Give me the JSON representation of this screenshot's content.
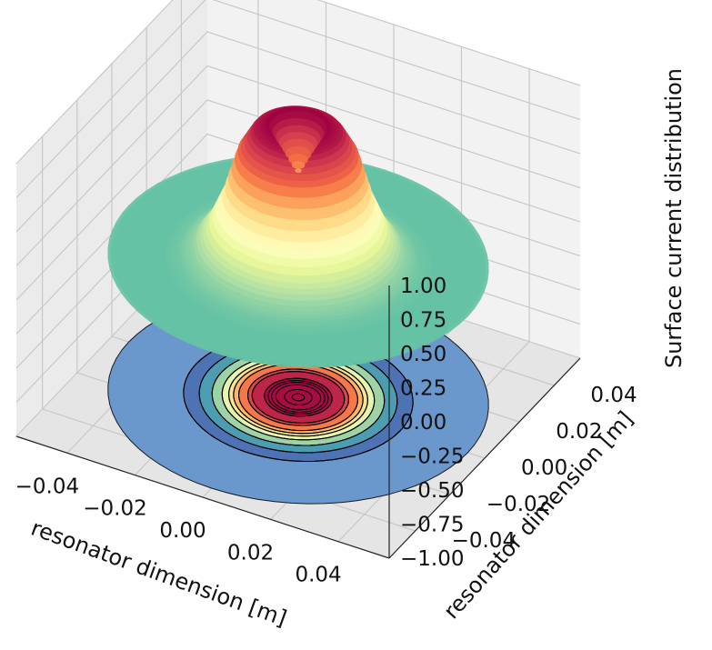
{
  "chart_data": {
    "type": "surface3d",
    "title": "",
    "xlabel": "resonator dimension [m]",
    "ylabel": "resonator dimension [m]",
    "zlabel": "Surface current distribution",
    "xlim": [
      -0.055,
      0.055
    ],
    "ylim": [
      -0.055,
      0.055
    ],
    "zlim": [
      -1.0,
      1.0
    ],
    "x_ticks": [
      -0.04,
      -0.02,
      0.0,
      0.02,
      0.04
    ],
    "x_tick_labels": [
      "−0.04",
      "−0.02",
      "0.00",
      "0.02",
      "0.04"
    ],
    "y_ticks": [
      -0.04,
      -0.02,
      0.0,
      0.02,
      0.04
    ],
    "y_tick_labels": [
      "−0.04",
      "−0.02",
      "0.00",
      "0.02",
      "0.04"
    ],
    "z_ticks": [
      -1.0,
      -0.75,
      -0.5,
      -0.25,
      0.0,
      0.25,
      0.5,
      0.75,
      1.0
    ],
    "z_tick_labels": [
      "−1.00",
      "−0.75",
      "−0.50",
      "−0.25",
      "0.00",
      "0.25",
      "0.50",
      "0.75",
      "1.00"
    ],
    "surface_profile": {
      "r": [
        0.0,
        0.004,
        0.008,
        0.012,
        0.016,
        0.02,
        0.024,
        0.028,
        0.032,
        0.036,
        0.04,
        0.045,
        0.05
      ],
      "z": [
        0.62,
        0.82,
        1.0,
        0.95,
        0.78,
        0.45,
        0.22,
        0.08,
        0.02,
        0.0,
        0.0,
        0.0,
        0.0
      ]
    },
    "contour_offset_z": -1.0,
    "contour_levels": [
      0.05,
      0.15,
      0.3,
      0.45,
      0.6,
      0.7,
      0.8,
      0.9,
      0.95,
      0.99
    ],
    "colormap": "Spectral_r",
    "grid": true
  }
}
